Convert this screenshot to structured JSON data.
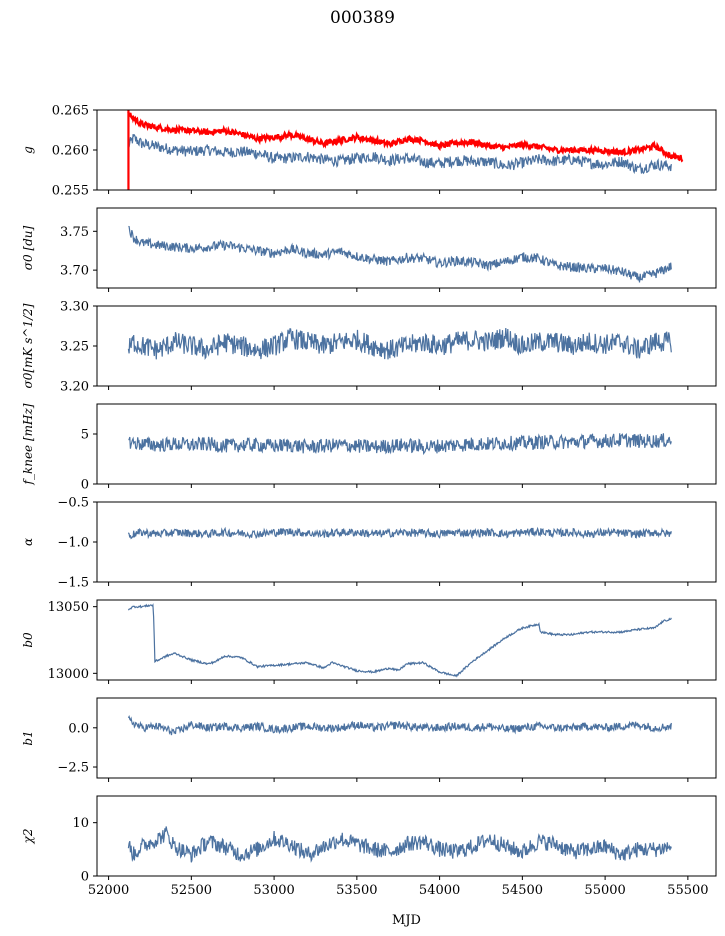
{
  "title": "000389",
  "xlabel": "MJD",
  "chart_data": [
    {
      "type": "line",
      "ylabel": "g",
      "ylim": [
        0.255,
        0.265
      ],
      "xlim": [
        51930,
        55670
      ],
      "yticks": [
        "0.255",
        "0.260",
        "0.265"
      ],
      "ytick_values": [
        0.255,
        0.26,
        0.265
      ],
      "series": [
        {
          "color": "#4c72a0",
          "x": [
            52120,
            52150,
            52200,
            52300,
            52400,
            52500,
            52600,
            52700,
            52800,
            52900,
            53000,
            53100,
            53200,
            53300,
            53400,
            53500,
            53600,
            53700,
            53800,
            53900,
            54000,
            54100,
            54200,
            54300,
            54400,
            54500,
            54600,
            54700,
            54800,
            54900,
            55000,
            55100,
            55200,
            55300,
            55400
          ],
          "y": [
            0.2605,
            0.2615,
            0.2608,
            0.2604,
            0.26,
            0.2598,
            0.26,
            0.2597,
            0.2598,
            0.2596,
            0.2589,
            0.259,
            0.2592,
            0.2588,
            0.2586,
            0.259,
            0.2592,
            0.2587,
            0.259,
            0.2585,
            0.2583,
            0.2587,
            0.2586,
            0.2585,
            0.258,
            0.2584,
            0.2588,
            0.2586,
            0.2588,
            0.2584,
            0.2582,
            0.2586,
            0.2576,
            0.2582,
            0.258
          ]
        },
        {
          "color": "#ff0000",
          "x": [
            52120,
            52150,
            52200,
            52300,
            52400,
            52500,
            52600,
            52700,
            52800,
            52900,
            53000,
            53100,
            53200,
            53300,
            53400,
            53500,
            53600,
            53700,
            53800,
            53900,
            54000,
            54100,
            54200,
            54300,
            54400,
            54500,
            54600,
            54700,
            54800,
            54900,
            55000,
            55100,
            55200,
            55300,
            55400,
            55470
          ],
          "y": [
            0.2645,
            0.264,
            0.2632,
            0.2628,
            0.2625,
            0.2624,
            0.2622,
            0.2624,
            0.262,
            0.2614,
            0.2616,
            0.2619,
            0.2614,
            0.2608,
            0.2612,
            0.2616,
            0.2612,
            0.2607,
            0.2614,
            0.2612,
            0.2605,
            0.2609,
            0.261,
            0.2605,
            0.2603,
            0.2607,
            0.2604,
            0.26,
            0.26,
            0.26,
            0.2599,
            0.2597,
            0.26,
            0.2605,
            0.2592,
            0.259
          ]
        }
      ]
    },
    {
      "type": "line",
      "ylabel": "σ0 [du]",
      "ylim": [
        3.677,
        3.78
      ],
      "xlim": [
        51930,
        55670
      ],
      "yticks": [
        "3.70",
        "3.75"
      ],
      "ytick_values": [
        3.7,
        3.75
      ],
      "series": [
        {
          "color": "#4c72a0",
          "x": [
            52120,
            52150,
            52200,
            52300,
            52400,
            52500,
            52600,
            52700,
            52800,
            52900,
            53000,
            53100,
            53200,
            53300,
            53400,
            53500,
            53600,
            53700,
            53800,
            53900,
            54000,
            54100,
            54200,
            54300,
            54400,
            54500,
            54600,
            54700,
            54800,
            54900,
            55000,
            55100,
            55200,
            55300,
            55400
          ],
          "y": [
            3.755,
            3.742,
            3.735,
            3.732,
            3.73,
            3.728,
            3.73,
            3.732,
            3.729,
            3.725,
            3.722,
            3.727,
            3.722,
            3.72,
            3.724,
            3.718,
            3.714,
            3.711,
            3.716,
            3.715,
            3.709,
            3.712,
            3.71,
            3.706,
            3.711,
            3.717,
            3.715,
            3.706,
            3.704,
            3.702,
            3.702,
            3.698,
            3.69,
            3.695,
            3.705
          ]
        }
      ]
    },
    {
      "type": "line",
      "ylabel": "σ0[mK s^1/2]",
      "ylim": [
        3.2,
        3.3
      ],
      "xlim": [
        51930,
        55670
      ],
      "yticks": [
        "3.20",
        "3.25",
        "3.30"
      ],
      "ytick_values": [
        3.2,
        3.25,
        3.3
      ],
      "series": [
        {
          "color": "#4c72a0",
          "x": [
            52120,
            52150,
            52200,
            52300,
            52400,
            52500,
            52600,
            52700,
            52800,
            52900,
            53000,
            53100,
            53200,
            53300,
            53400,
            53500,
            53600,
            53700,
            53800,
            53900,
            54000,
            54100,
            54200,
            54300,
            54400,
            54500,
            54600,
            54700,
            54800,
            54900,
            55000,
            55100,
            55200,
            55300,
            55400
          ],
          "y": [
            3.245,
            3.255,
            3.25,
            3.245,
            3.255,
            3.25,
            3.245,
            3.255,
            3.25,
            3.245,
            3.25,
            3.26,
            3.255,
            3.25,
            3.255,
            3.258,
            3.25,
            3.245,
            3.25,
            3.255,
            3.25,
            3.255,
            3.258,
            3.255,
            3.262,
            3.25,
            3.255,
            3.255,
            3.25,
            3.255,
            3.252,
            3.255,
            3.245,
            3.255,
            3.255
          ]
        }
      ]
    },
    {
      "type": "line",
      "ylabel": "f_knee [mHz]",
      "ylim": [
        0,
        8
      ],
      "xlim": [
        51930,
        55670
      ],
      "yticks": [
        "0",
        "5"
      ],
      "ytick_values": [
        0,
        5
      ],
      "series": [
        {
          "color": "#4c72a0",
          "x": [
            52120,
            52200,
            52300,
            52400,
            52500,
            52600,
            52700,
            52800,
            52900,
            53000,
            53100,
            53200,
            53300,
            53400,
            53500,
            53600,
            53700,
            53800,
            53900,
            54000,
            54100,
            54200,
            54300,
            54400,
            54500,
            54600,
            54700,
            54800,
            54900,
            55000,
            55100,
            55200,
            55300,
            55400
          ],
          "y": [
            4.2,
            4.0,
            3.9,
            4.0,
            3.9,
            4.0,
            3.8,
            3.9,
            3.9,
            3.8,
            3.9,
            3.7,
            3.8,
            3.9,
            3.8,
            3.7,
            3.8,
            3.9,
            3.7,
            3.8,
            3.9,
            4.0,
            4.0,
            4.1,
            4.1,
            4.2,
            4.2,
            4.2,
            4.3,
            4.3,
            4.4,
            4.3,
            4.3,
            4.4
          ]
        }
      ]
    },
    {
      "type": "line",
      "ylabel": "α",
      "ylim": [
        -1.5,
        -0.5
      ],
      "xlim": [
        51930,
        55670
      ],
      "yticks": [
        "−1.5",
        "−1.0",
        "−0.5"
      ],
      "ytick_values": [
        -1.5,
        -1.0,
        -0.5
      ],
      "series": [
        {
          "color": "#4c72a0",
          "x": [
            52120,
            52200,
            52300,
            52400,
            52500,
            52600,
            52700,
            52800,
            52900,
            53000,
            53100,
            53200,
            53300,
            53400,
            53500,
            53600,
            53700,
            53800,
            53900,
            54000,
            54100,
            54200,
            54300,
            54400,
            54500,
            54600,
            54700,
            54800,
            54900,
            55000,
            55100,
            55200,
            55300,
            55400
          ],
          "y": [
            -0.92,
            -0.88,
            -0.9,
            -0.88,
            -0.89,
            -0.9,
            -0.88,
            -0.89,
            -0.9,
            -0.88,
            -0.87,
            -0.89,
            -0.9,
            -0.88,
            -0.88,
            -0.9,
            -0.89,
            -0.88,
            -0.89,
            -0.9,
            -0.88,
            -0.89,
            -0.88,
            -0.9,
            -0.88,
            -0.87,
            -0.89,
            -0.88,
            -0.9,
            -0.88,
            -0.89,
            -0.9,
            -0.88,
            -0.9
          ]
        }
      ]
    },
    {
      "type": "line",
      "ylabel": "b0",
      "ylim": [
        12995,
        13055
      ],
      "xlim": [
        51930,
        55670
      ],
      "yticks": [
        "13000",
        "13050"
      ],
      "ytick_values": [
        13000,
        13050
      ],
      "series": [
        {
          "color": "#4c72a0",
          "x": [
            52120,
            52150,
            52200,
            52250,
            52270,
            52280,
            52300,
            52350,
            52400,
            52500,
            52600,
            52650,
            52700,
            52800,
            52900,
            53000,
            53100,
            53200,
            53300,
            53350,
            53400,
            53500,
            53600,
            53700,
            53750,
            53800,
            53900,
            54000,
            54100,
            54200,
            54300,
            54400,
            54500,
            54600,
            54610,
            54700,
            54800,
            54900,
            55000,
            55100,
            55200,
            55300,
            55350,
            55400
          ],
          "y": [
            13048,
            13050,
            13050,
            13051,
            13051,
            13009,
            13010,
            13013,
            13015,
            13010,
            13007,
            13009,
            13013,
            13012,
            13005,
            13006,
            13007,
            13008,
            13004,
            13008,
            13006,
            13002,
            13001,
            13004,
            13002,
            13007,
            13008,
            13001,
            12998,
            13009,
            13018,
            13027,
            13034,
            13037,
            13031,
            13029,
            13029,
            13031,
            13031,
            13031,
            13033,
            13034,
            13039,
            13041
          ]
        }
      ]
    },
    {
      "type": "line",
      "ylabel": "b1",
      "ylim": [
        -3.2,
        1.9
      ],
      "xlim": [
        51930,
        55670
      ],
      "yticks": [
        "−2.5",
        "0.0"
      ],
      "ytick_values": [
        -2.5,
        0.0
      ],
      "series": [
        {
          "color": "#4c72a0",
          "x": [
            52120,
            52200,
            52300,
            52400,
            52500,
            52600,
            52700,
            52800,
            52900,
            53000,
            53100,
            53200,
            53300,
            53400,
            53500,
            53600,
            53700,
            53750,
            53800,
            53900,
            54000,
            54100,
            54200,
            54300,
            54400,
            54500,
            54600,
            54700,
            54800,
            54900,
            55000,
            55100,
            55200,
            55300,
            55400
          ],
          "y": [
            0.5,
            0.0,
            0.1,
            -0.3,
            0.2,
            0.0,
            0.1,
            0.0,
            0.1,
            -0.1,
            0.0,
            0.1,
            0.0,
            0.0,
            0.2,
            0.0,
            0.1,
            0.2,
            0.1,
            0.0,
            0.0,
            0.1,
            0.0,
            0.1,
            -0.1,
            0.0,
            0.1,
            0.0,
            0.0,
            0.1,
            0.0,
            0.1,
            0.2,
            0.0,
            0.1
          ]
        }
      ]
    },
    {
      "type": "line",
      "ylabel": "χ2",
      "ylim": [
        0,
        15
      ],
      "xlim": [
        51930,
        55670
      ],
      "yticks": [
        "0",
        "10"
      ],
      "ytick_values": [
        0,
        10
      ],
      "xticks": [
        "52000",
        "52500",
        "53000",
        "53500",
        "54000",
        "54500",
        "55000",
        "55500"
      ],
      "xtick_values": [
        52000,
        52500,
        53000,
        53500,
        54000,
        54500,
        55000,
        55500
      ],
      "series": [
        {
          "color": "#4c72a0",
          "x": [
            52120,
            52150,
            52200,
            52300,
            52350,
            52400,
            52500,
            52600,
            52700,
            52800,
            52900,
            53000,
            53100,
            53200,
            53300,
            53400,
            53500,
            53600,
            53700,
            53800,
            53900,
            54000,
            54100,
            54200,
            54300,
            54400,
            54500,
            54600,
            54700,
            54800,
            54900,
            55000,
            55100,
            55200,
            55300,
            55400
          ],
          "y": [
            6.0,
            4.0,
            5.5,
            7.0,
            8.0,
            5.5,
            4.0,
            6.5,
            5.5,
            4.0,
            5.0,
            7.0,
            6.0,
            4.0,
            5.5,
            7.0,
            6.0,
            5.0,
            4.5,
            6.0,
            6.5,
            5.0,
            4.5,
            5.5,
            7.0,
            5.5,
            4.5,
            6.5,
            6.0,
            4.5,
            5.0,
            5.5,
            4.0,
            5.0,
            5.0,
            5.5
          ]
        }
      ]
    }
  ]
}
